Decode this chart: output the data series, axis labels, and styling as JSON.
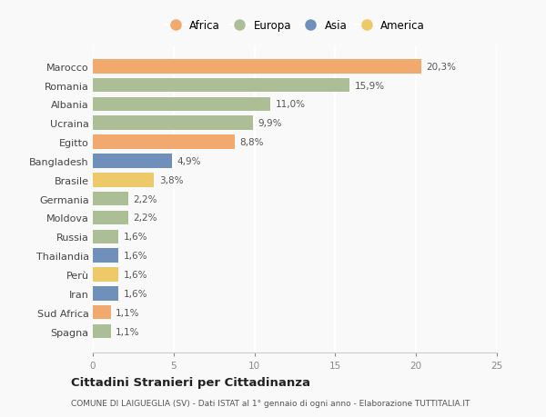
{
  "countries": [
    "Marocco",
    "Romania",
    "Albania",
    "Ucraina",
    "Egitto",
    "Bangladesh",
    "Brasile",
    "Germania",
    "Moldova",
    "Russia",
    "Thailandia",
    "Perù",
    "Iran",
    "Sud Africa",
    "Spagna"
  ],
  "values": [
    20.3,
    15.9,
    11.0,
    9.9,
    8.8,
    4.9,
    3.8,
    2.2,
    2.2,
    1.6,
    1.6,
    1.6,
    1.6,
    1.1,
    1.1
  ],
  "labels": [
    "20,3%",
    "15,9%",
    "11,0%",
    "9,9%",
    "8,8%",
    "4,9%",
    "3,8%",
    "2,2%",
    "2,2%",
    "1,6%",
    "1,6%",
    "1,6%",
    "1,6%",
    "1,1%",
    "1,1%"
  ],
  "categories": [
    "Africa",
    "Europa",
    "Europa",
    "Europa",
    "Africa",
    "Asia",
    "America",
    "Europa",
    "Europa",
    "Europa",
    "Asia",
    "America",
    "Asia",
    "Africa",
    "Europa"
  ],
  "colors": {
    "Africa": "#F2A96E",
    "Europa": "#ABBE96",
    "Asia": "#7090BC",
    "America": "#EEC96A"
  },
  "legend_order": [
    "Africa",
    "Europa",
    "Asia",
    "America"
  ],
  "xlim": [
    0,
    25
  ],
  "xticks": [
    0,
    5,
    10,
    15,
    20,
    25
  ],
  "title": "Cittadini Stranieri per Cittadinanza",
  "subtitle": "COMUNE DI LAIGUEGLIA (SV) - Dati ISTAT al 1° gennaio di ogni anno - Elaborazione TUTTITALIA.IT",
  "background_color": "#f9f9f9",
  "bar_height": 0.75,
  "label_fontsize": 7.5,
  "ytick_fontsize": 8.0,
  "xtick_fontsize": 7.5
}
